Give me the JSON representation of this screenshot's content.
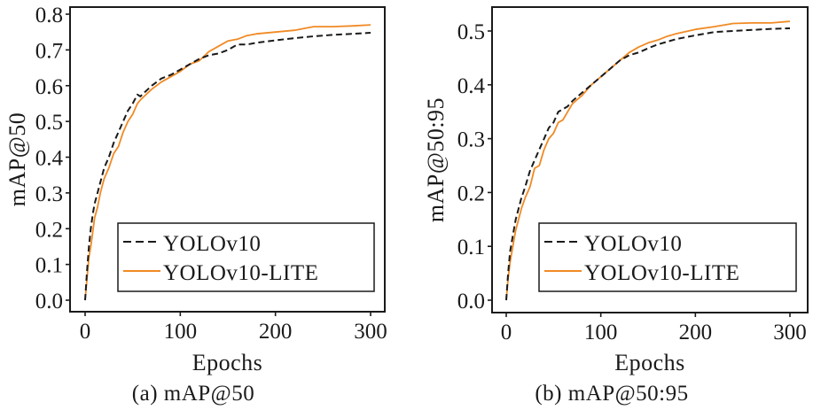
{
  "chart_data": [
    {
      "type": "line",
      "panel": "a",
      "caption": "(a) mAP@50",
      "xlabel": "Epochs",
      "ylabel": "mAP@50",
      "xlim": [
        0,
        300
      ],
      "ylim": [
        0.0,
        0.8
      ],
      "xticks": [
        0,
        100,
        200,
        300
      ],
      "xtick_labels": [
        "0",
        "100",
        "200",
        "300"
      ],
      "yticks": [
        0.0,
        0.1,
        0.2,
        0.3,
        0.4,
        0.5,
        0.6,
        0.7,
        0.8
      ],
      "ytick_labels": [
        "0.0",
        "0.1",
        "0.2",
        "0.3",
        "0.4",
        "0.5",
        "0.6",
        "0.7",
        "0.8"
      ],
      "grid": false,
      "legend_position": "bottom-right",
      "series": [
        {
          "name": "YOLOv10",
          "style": "dashed",
          "color": "#1a1a1a",
          "x": [
            0,
            2,
            4,
            6,
            8,
            10,
            13,
            16,
            20,
            25,
            30,
            35,
            40,
            45,
            50,
            55,
            58,
            62,
            70,
            80,
            90,
            100,
            110,
            120,
            130,
            140,
            150,
            160,
            170,
            180,
            200,
            220,
            240,
            260,
            280,
            300
          ],
          "y": [
            0.0,
            0.08,
            0.15,
            0.2,
            0.24,
            0.27,
            0.3,
            0.33,
            0.37,
            0.4,
            0.44,
            0.47,
            0.5,
            0.53,
            0.55,
            0.575,
            0.57,
            0.58,
            0.6,
            0.62,
            0.63,
            0.645,
            0.66,
            0.675,
            0.685,
            0.69,
            0.7,
            0.715,
            0.715,
            0.72,
            0.727,
            0.733,
            0.738,
            0.742,
            0.745,
            0.748
          ]
        },
        {
          "name": "YOLOv10-LITE",
          "style": "solid",
          "color": "#f08a24",
          "x": [
            0,
            2,
            4,
            6,
            8,
            10,
            13,
            16,
            20,
            25,
            30,
            35,
            40,
            45,
            50,
            55,
            58,
            62,
            70,
            80,
            90,
            100,
            110,
            120,
            130,
            140,
            150,
            160,
            170,
            180,
            200,
            220,
            240,
            260,
            280,
            300
          ],
          "y": [
            0.0,
            0.06,
            0.12,
            0.15,
            0.19,
            0.23,
            0.26,
            0.3,
            0.34,
            0.37,
            0.41,
            0.43,
            0.47,
            0.5,
            0.52,
            0.55,
            0.56,
            0.57,
            0.59,
            0.61,
            0.625,
            0.64,
            0.66,
            0.67,
            0.695,
            0.71,
            0.725,
            0.73,
            0.74,
            0.745,
            0.75,
            0.755,
            0.765,
            0.765,
            0.767,
            0.77
          ]
        }
      ]
    },
    {
      "type": "line",
      "panel": "b",
      "caption": "(b) mAP@50:95",
      "xlabel": "Epochs",
      "ylabel": "mAP@50:95",
      "xlim": [
        0,
        300
      ],
      "ylim": [
        0.0,
        0.5
      ],
      "xticks": [
        0,
        100,
        200,
        300
      ],
      "xtick_labels": [
        "0",
        "100",
        "200",
        "300"
      ],
      "yticks": [
        0.0,
        0.1,
        0.2,
        0.3,
        0.4,
        0.5
      ],
      "ytick_labels": [
        "0.0",
        "0.1",
        "0.2",
        "0.3",
        "0.4",
        "0.5"
      ],
      "grid": false,
      "legend_position": "bottom-right",
      "series": [
        {
          "name": "YOLOv10",
          "style": "dashed",
          "color": "#1a1a1a",
          "x": [
            0,
            2,
            4,
            6,
            8,
            10,
            13,
            16,
            20,
            25,
            30,
            35,
            40,
            45,
            50,
            55,
            60,
            65,
            70,
            80,
            90,
            100,
            110,
            120,
            130,
            140,
            150,
            160,
            170,
            180,
            200,
            220,
            240,
            260,
            280,
            300
          ],
          "y": [
            0.0,
            0.05,
            0.09,
            0.11,
            0.13,
            0.15,
            0.17,
            0.19,
            0.21,
            0.24,
            0.26,
            0.28,
            0.3,
            0.32,
            0.33,
            0.35,
            0.355,
            0.36,
            0.37,
            0.385,
            0.4,
            0.415,
            0.43,
            0.445,
            0.455,
            0.46,
            0.468,
            0.475,
            0.48,
            0.485,
            0.492,
            0.498,
            0.5,
            0.502,
            0.504,
            0.505
          ]
        },
        {
          "name": "YOLOv10-LITE",
          "style": "solid",
          "color": "#f08a24",
          "x": [
            0,
            2,
            4,
            6,
            8,
            10,
            13,
            16,
            20,
            25,
            30,
            35,
            40,
            45,
            50,
            55,
            60,
            65,
            70,
            80,
            90,
            100,
            110,
            120,
            130,
            140,
            150,
            160,
            170,
            180,
            200,
            220,
            240,
            260,
            280,
            300
          ],
          "y": [
            0.0,
            0.04,
            0.07,
            0.09,
            0.11,
            0.13,
            0.15,
            0.17,
            0.19,
            0.21,
            0.245,
            0.25,
            0.28,
            0.3,
            0.31,
            0.33,
            0.335,
            0.35,
            0.365,
            0.38,
            0.4,
            0.415,
            0.43,
            0.445,
            0.46,
            0.47,
            0.478,
            0.483,
            0.49,
            0.495,
            0.503,
            0.508,
            0.514,
            0.515,
            0.515,
            0.518
          ]
        }
      ]
    }
  ]
}
